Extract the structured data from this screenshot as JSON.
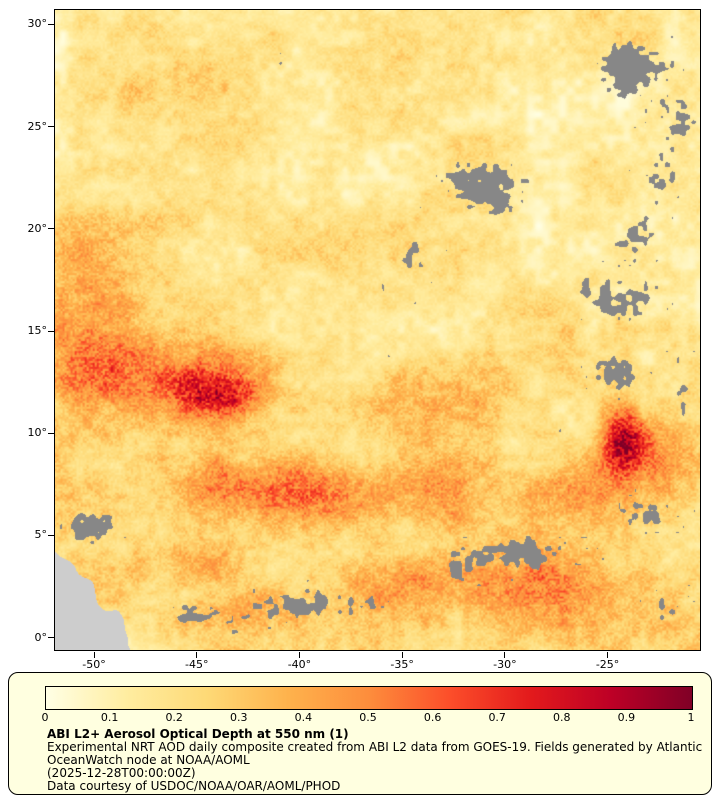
{
  "axes": {
    "lat": [
      {
        "value": 30,
        "label": "30°"
      },
      {
        "value": 25,
        "label": "25°"
      },
      {
        "value": 20,
        "label": "20°"
      },
      {
        "value": 15,
        "label": "15°"
      },
      {
        "value": 10,
        "label": "10°"
      },
      {
        "value": 5,
        "label": "5°"
      },
      {
        "value": 0,
        "label": "0°"
      }
    ],
    "lon": [
      {
        "value": -50,
        "label": "-50°"
      },
      {
        "value": -45,
        "label": "-45°"
      },
      {
        "value": -40,
        "label": "-40°"
      },
      {
        "value": -35,
        "label": "-35°"
      },
      {
        "value": -30,
        "label": "-30°"
      },
      {
        "value": -25,
        "label": "-25°"
      }
    ]
  },
  "colorbar": {
    "min": 0,
    "max": 1,
    "ticks": [
      "0",
      "0.1",
      "0.2",
      "0.3",
      "0.4",
      "0.5",
      "0.6",
      "0.7",
      "0.8",
      "0.9",
      "1"
    ]
  },
  "caption": {
    "title": "ABI L2+ Aerosol Optical Depth at 550 nm (1)",
    "line1": "Experimental NRT AOD daily composite created from ABI L2 data from GOES-19. Fields generated by Atlantic",
    "line2": "OceanWatch node at NOAA/AOML",
    "line3": "(2025-12-28T00:00:00Z)",
    "line4": "Data courtesy of USDOC/NOAA/OAR/AOML/PHOD"
  },
  "colors": {
    "panel_bg": "#ffffe0",
    "missing_data": "#878787",
    "land": "#cdcdcd",
    "frame": "#000000",
    "page_bg": "#ffffff"
  },
  "chart_data": {
    "type": "heatmap",
    "title": "ABI L2+ Aerosol Optical Depth at 550 nm (1)",
    "x_ticks": [
      -50,
      -45,
      -40,
      -35,
      -30,
      -25
    ],
    "y_ticks": [
      30,
      25,
      20,
      15,
      10,
      5,
      0
    ],
    "x_range": [
      -51.9,
      -20.5
    ],
    "y_range": [
      -0.6,
      30.7
    ],
    "value_range": [
      0,
      1
    ],
    "colormap": [
      [
        0.0,
        "#ffffe5"
      ],
      [
        0.125,
        "#ffeda0"
      ],
      [
        0.25,
        "#fed976"
      ],
      [
        0.375,
        "#feb24c"
      ],
      [
        0.5,
        "#fd8d3c"
      ],
      [
        0.625,
        "#fc4e2a"
      ],
      [
        0.75,
        "#e31a1c"
      ],
      [
        0.875,
        "#bd0026"
      ],
      [
        1.0,
        "#800026"
      ]
    ],
    "high_aod_regions": [
      {
        "lon": -45.5,
        "lat": 12.4,
        "sx": 4.2,
        "sy": 2.1,
        "amp": 0.38
      },
      {
        "lon": -43.6,
        "lat": 11.9,
        "sx": 1.7,
        "sy": 1.0,
        "amp": 0.32
      },
      {
        "lon": -49.8,
        "lat": 13.8,
        "sx": 2.6,
        "sy": 2.4,
        "amp": 0.26
      },
      {
        "lon": -50.5,
        "lat": 17.5,
        "sx": 2.6,
        "sy": 3.2,
        "amp": 0.18
      },
      {
        "lon": -38.0,
        "lat": 7.0,
        "sx": 6.5,
        "sy": 1.6,
        "amp": 0.3
      },
      {
        "lon": -44.0,
        "lat": 7.5,
        "sx": 2.5,
        "sy": 1.2,
        "amp": 0.18
      },
      {
        "lon": -24.3,
        "lat": 9.6,
        "sx": 1.1,
        "sy": 1.5,
        "amp": 0.72
      },
      {
        "lon": -22.5,
        "lat": 8.5,
        "sx": 1.5,
        "sy": 2.0,
        "amp": 0.28
      },
      {
        "lon": -26.0,
        "lat": 7.2,
        "sx": 2.2,
        "sy": 1.4,
        "amp": 0.22
      },
      {
        "lon": -27.5,
        "lat": 2.3,
        "sx": 5.0,
        "sy": 2.0,
        "amp": 0.28
      },
      {
        "lon": -36.0,
        "lat": 2.5,
        "sx": 3.0,
        "sy": 1.5,
        "amp": 0.2
      },
      {
        "lon": -42.5,
        "lat": 1.2,
        "sx": 2.5,
        "sy": 1.0,
        "amp": 0.22
      },
      {
        "lon": -45.0,
        "lat": 3.5,
        "sx": 3.0,
        "sy": 1.3,
        "amp": 0.16
      },
      {
        "lon": -33.0,
        "lat": 12.0,
        "sx": 4.0,
        "sy": 2.0,
        "amp": 0.14
      },
      {
        "lon": -48.0,
        "lat": 26.5,
        "sx": 3.0,
        "sy": 1.8,
        "amp": 0.1
      }
    ],
    "missing_data_regions": [
      {
        "lon": -23.5,
        "lat": 28.0,
        "sx": 2.0,
        "sy": 1.3,
        "s": 0.45
      },
      {
        "lon": -21.5,
        "lat": 25.5,
        "sx": 1.6,
        "sy": 1.6,
        "s": 0.42
      },
      {
        "lon": -41.0,
        "lat": 28.3,
        "sx": 1.1,
        "sy": 0.6,
        "s": 0.3
      },
      {
        "lon": -31.0,
        "lat": 22.0,
        "sx": 2.2,
        "sy": 1.3,
        "s": 0.3
      },
      {
        "lon": -22.5,
        "lat": 22.5,
        "sx": 1.2,
        "sy": 1.5,
        "s": 0.3
      },
      {
        "lon": -34.5,
        "lat": 18.5,
        "sx": 1.4,
        "sy": 1.8,
        "s": 0.28
      },
      {
        "lon": -23.5,
        "lat": 20.0,
        "sx": 1.2,
        "sy": 1.2,
        "s": 0.32
      },
      {
        "lon": -24.5,
        "lat": 16.5,
        "sx": 1.8,
        "sy": 1.5,
        "s": 0.4
      },
      {
        "lon": -24.7,
        "lat": 12.8,
        "sx": 1.3,
        "sy": 1.0,
        "s": 0.32
      },
      {
        "lon": -21.2,
        "lat": 12.0,
        "sx": 0.9,
        "sy": 2.5,
        "s": 0.32
      },
      {
        "lon": -26.5,
        "lat": 10.5,
        "sx": 1.0,
        "sy": 0.8,
        "s": 0.28
      },
      {
        "lon": -23.0,
        "lat": 6.0,
        "sx": 1.6,
        "sy": 1.0,
        "s": 0.34
      },
      {
        "lon": -29.5,
        "lat": 4.0,
        "sx": 3.2,
        "sy": 1.1,
        "s": 0.48
      },
      {
        "lon": -39.0,
        "lat": 1.5,
        "sx": 3.0,
        "sy": 0.9,
        "s": 0.42
      },
      {
        "lon": -44.5,
        "lat": 1.0,
        "sx": 1.6,
        "sy": 0.7,
        "s": 0.34
      },
      {
        "lon": -50.0,
        "lat": 5.5,
        "sx": 1.5,
        "sy": 1.0,
        "s": 0.38
      },
      {
        "lon": -36.5,
        "lat": 13.5,
        "sx": 1.0,
        "sy": 0.8,
        "s": 0.26
      },
      {
        "lon": -22.0,
        "lat": 1.5,
        "sx": 1.2,
        "sy": 1.0,
        "s": 0.3
      }
    ]
  }
}
